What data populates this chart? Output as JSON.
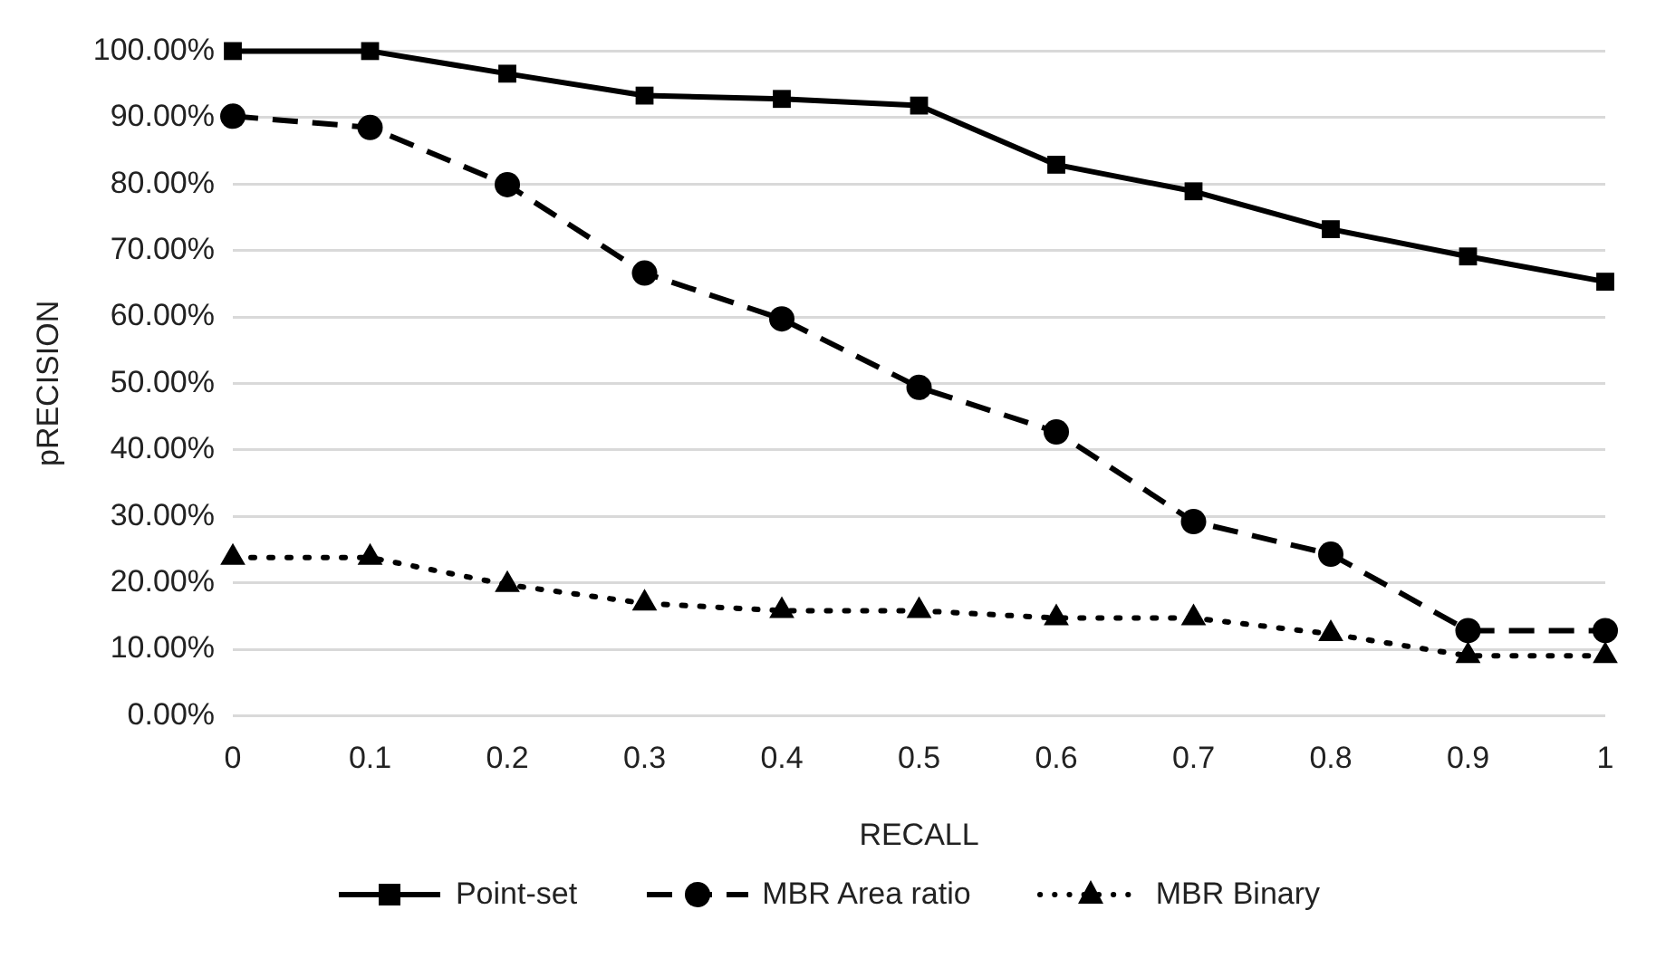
{
  "chart_data": {
    "type": "line",
    "xlabel": "RECALL",
    "ylabel": "pRECISION",
    "categories": [
      "0",
      "0.1",
      "0.2",
      "0.3",
      "0.4",
      "0.5",
      "0.6",
      "0.7",
      "0.8",
      "0.9",
      "1"
    ],
    "series": [
      {
        "name": "Point-set",
        "color": "#000000",
        "marker": "square",
        "line_style": "solid",
        "values": [
          100,
          100,
          96.6,
          93.3,
          92.8,
          91.8,
          82.9,
          78.9,
          73.2,
          69.1,
          65.3
        ]
      },
      {
        "name": "MBR Area ratio",
        "color": "#000000",
        "marker": "circle",
        "line_style": "dashed",
        "values": [
          90.2,
          88.5,
          79.9,
          66.6,
          59.7,
          49.4,
          42.7,
          29.2,
          24.3,
          12.8,
          12.8
        ]
      },
      {
        "name": "MBR Binary",
        "color": "#000000",
        "marker": "triangle",
        "line_style": "dotted",
        "values": [
          23.8,
          23.8,
          19.7,
          16.9,
          15.8,
          15.8,
          14.7,
          14.7,
          12.3,
          9,
          9
        ]
      }
    ],
    "ylim": [
      0,
      100
    ],
    "yticks": [
      {
        "value": 0,
        "label": "0.00%"
      },
      {
        "value": 10,
        "label": "10.00%"
      },
      {
        "value": 20,
        "label": "20.00%"
      },
      {
        "value": 30,
        "label": "30.00%"
      },
      {
        "value": 40,
        "label": "40.00%"
      },
      {
        "value": 50,
        "label": "50.00%"
      },
      {
        "value": 60,
        "label": "60.00%"
      },
      {
        "value": 70,
        "label": "70.00%"
      },
      {
        "value": 80,
        "label": "80.00%"
      },
      {
        "value": 90,
        "label": "90.00%"
      },
      {
        "value": 100,
        "label": "100.00%"
      }
    ],
    "grid": "y",
    "legend": "bottom"
  }
}
